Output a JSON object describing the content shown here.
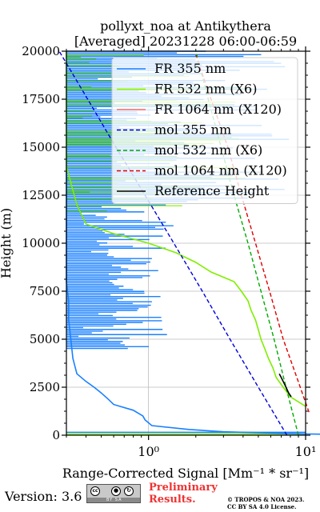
{
  "chart_data": {
    "type": "line",
    "title": "pollyxt_noa at Antikythera",
    "subtitle": "[Averaged] 20231228 06:00-06:59",
    "xlabel": "Range-Corrected Signal [Mm⁻¹ * sr⁻¹]",
    "ylabel": "Height (m)",
    "xscale": "log",
    "xlim": [
      0.3,
      10
    ],
    "ylim": [
      0,
      20000
    ],
    "x_ticks": [
      "10⁰",
      "10¹"
    ],
    "y_ticks": [
      "0",
      "2500",
      "5000",
      "7500",
      "10000",
      "12500",
      "15000",
      "17500",
      "20000"
    ],
    "grid": true,
    "legend_position": "upper-right",
    "series": [
      {
        "name": "FR 355 nm",
        "color": "#1a80ff",
        "style": "solid",
        "points": [
          [
            30,
            0
          ],
          [
            8,
            80
          ],
          [
            3.0,
            180
          ],
          [
            1.8,
            300
          ],
          [
            1.05,
            500
          ],
          [
            0.95,
            800
          ],
          [
            0.92,
            1000
          ],
          [
            0.8,
            1300
          ],
          [
            0.6,
            1600
          ],
          [
            0.55,
            1900
          ],
          [
            0.5,
            2200
          ],
          [
            0.45,
            2500
          ],
          [
            0.4,
            2800
          ],
          [
            0.35,
            3200
          ],
          [
            0.33,
            4000
          ],
          [
            0.32,
            5000
          ],
          [
            0.31,
            6000
          ],
          [
            0.31,
            7000
          ],
          [
            0.3,
            8000
          ],
          [
            0.3,
            9000
          ],
          [
            0.3,
            10000
          ],
          [
            0.3,
            12000
          ],
          [
            0.3,
            14000
          ],
          [
            0.3,
            16000
          ],
          [
            0.3,
            18000
          ],
          [
            0.3,
            20000
          ]
        ]
      },
      {
        "name": "FR 532 nm (X6)",
        "color": "#80ee00",
        "style": "solid",
        "points": [
          [
            10,
            1500
          ],
          [
            8,
            2000
          ],
          [
            7.2,
            2500
          ],
          [
            6.5,
            3000
          ],
          [
            6.2,
            3500
          ],
          [
            5.8,
            4000
          ],
          [
            5.5,
            4500
          ],
          [
            5.2,
            5000
          ],
          [
            5.0,
            5500
          ],
          [
            4.8,
            6000
          ],
          [
            4.5,
            6500
          ],
          [
            4.3,
            7000
          ],
          [
            3.9,
            7500
          ],
          [
            3.5,
            8000
          ],
          [
            2.5,
            8500
          ],
          [
            2.0,
            9000
          ],
          [
            1.5,
            9500
          ],
          [
            1.0,
            10000
          ],
          [
            0.6,
            10500
          ],
          [
            0.4,
            11000
          ],
          [
            0.35,
            12000
          ],
          [
            0.3,
            14000
          ],
          [
            0.3,
            20000
          ]
        ]
      },
      {
        "name": "FR 1064 nm (X120)",
        "color": "#ff6666",
        "style": "solid",
        "points": []
      },
      {
        "name": "mol 355 nm",
        "color": "#0000dd",
        "style": "dashed",
        "points": [
          [
            7.6,
            0
          ],
          [
            5.0,
            2500
          ],
          [
            3.3,
            5000
          ],
          [
            2.2,
            7500
          ],
          [
            1.45,
            10000
          ],
          [
            0.95,
            12500
          ],
          [
            0.62,
            15000
          ],
          [
            0.41,
            17500
          ],
          [
            0.27,
            20000
          ]
        ]
      },
      {
        "name": "mol 532 nm (X6)",
        "color": "#00aa00",
        "style": "dashed",
        "points": [
          [
            9.0,
            0
          ],
          [
            7.5,
            2500
          ],
          [
            6.3,
            5000
          ],
          [
            5.2,
            7500
          ],
          [
            4.3,
            10000
          ],
          [
            3.5,
            12500
          ],
          [
            2.9,
            15000
          ],
          [
            2.4,
            17500
          ],
          [
            2.0,
            20000
          ]
        ]
      },
      {
        "name": "mol 1064 nm (X120)",
        "color": "#dd0000",
        "style": "dashed",
        "points": [
          [
            10.5,
            1200
          ],
          [
            8.8,
            3000
          ],
          [
            7.2,
            5000
          ],
          [
            5.9,
            7500
          ],
          [
            4.8,
            10000
          ],
          [
            3.9,
            12500
          ],
          [
            3.2,
            15000
          ],
          [
            2.5,
            17500
          ],
          [
            2.0,
            19800
          ]
        ]
      },
      {
        "name": "Reference Height",
        "color": "#000000",
        "style": "solid",
        "points": [
          [
            6.8,
            3200
          ],
          [
            7.0,
            3000
          ],
          [
            7.2,
            2800
          ],
          [
            7.5,
            2500
          ],
          [
            7.8,
            2200
          ],
          [
            8.1,
            2000
          ]
        ]
      }
    ]
  },
  "footer": {
    "version": "Version: 3.6",
    "cc_text": "BY   SA",
    "preliminary": [
      "Preliminary",
      "Results."
    ],
    "copyright": [
      "© TROPOS & NOA 2023.",
      "CC BY SA 4.0 License."
    ]
  }
}
